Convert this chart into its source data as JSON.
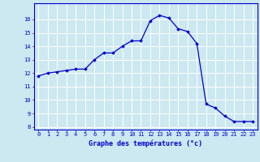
{
  "x": [
    0,
    1,
    2,
    3,
    4,
    5,
    6,
    7,
    8,
    9,
    10,
    11,
    12,
    13,
    14,
    15,
    16,
    17,
    18,
    19,
    20,
    21,
    22,
    23
  ],
  "y": [
    11.8,
    12.0,
    12.1,
    12.2,
    12.3,
    12.3,
    13.0,
    13.5,
    13.5,
    14.0,
    14.4,
    14.4,
    15.9,
    16.3,
    16.1,
    15.3,
    15.1,
    14.2,
    9.7,
    9.4,
    8.8,
    8.4,
    8.4,
    8.4
  ],
  "line_color": "#0000cc",
  "marker": "D",
  "marker_size": 1.8,
  "bg_color": "#cce8f0",
  "grid_color": "#ffffff",
  "xlabel": "Graphe des températures (°c)",
  "xlabel_color": "#0000cc",
  "tick_color": "#0000cc",
  "axis_color": "#0000cc",
  "ylim": [
    8,
    17
  ],
  "xlim": [
    -0.5,
    23.5
  ],
  "yticks": [
    8,
    9,
    10,
    11,
    12,
    13,
    14,
    15,
    16
  ],
  "xticks": [
    0,
    1,
    2,
    3,
    4,
    5,
    6,
    7,
    8,
    9,
    10,
    11,
    12,
    13,
    14,
    15,
    16,
    17,
    18,
    19,
    20,
    21,
    22,
    23
  ]
}
